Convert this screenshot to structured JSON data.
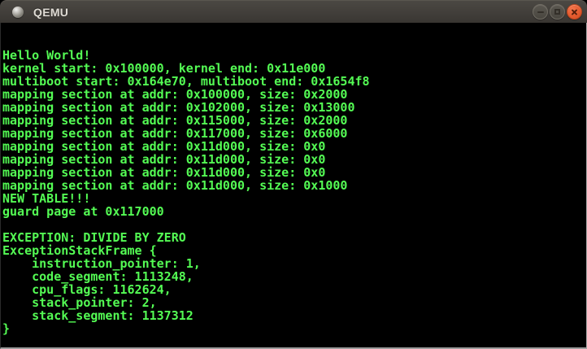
{
  "window": {
    "title": "QEMU",
    "controls": {
      "minimize": "minimize",
      "maximize": "maximize",
      "close": "close"
    },
    "titlebar_color": "#3d3a36",
    "close_button_color": "#e65f33"
  },
  "terminal": {
    "background": "#000000",
    "text_color": "#54fc54",
    "columns": 80,
    "rows": 25,
    "lines": [
      "",
      "",
      "Hello World!",
      "kernel start: 0x100000, kernel end: 0x11e000",
      "multiboot start: 0x164e70, multiboot end: 0x1654f8",
      "mapping section at addr: 0x100000, size: 0x2000",
      "mapping section at addr: 0x102000, size: 0x13000",
      "mapping section at addr: 0x115000, size: 0x2000",
      "mapping section at addr: 0x117000, size: 0x6000",
      "mapping section at addr: 0x11d000, size: 0x0",
      "mapping section at addr: 0x11d000, size: 0x0",
      "mapping section at addr: 0x11d000, size: 0x0",
      "mapping section at addr: 0x11d000, size: 0x1000",
      "NEW TABLE!!!",
      "guard page at 0x117000",
      "",
      "EXCEPTION: DIVIDE BY ZERO",
      "ExceptionStackFrame {",
      "    instruction_pointer: 1,",
      "    code_segment: 1113248,",
      "    cpu_flags: 1162624,",
      "    stack_pointer: 2,",
      "    stack_segment: 1137312",
      "}",
      ""
    ]
  }
}
